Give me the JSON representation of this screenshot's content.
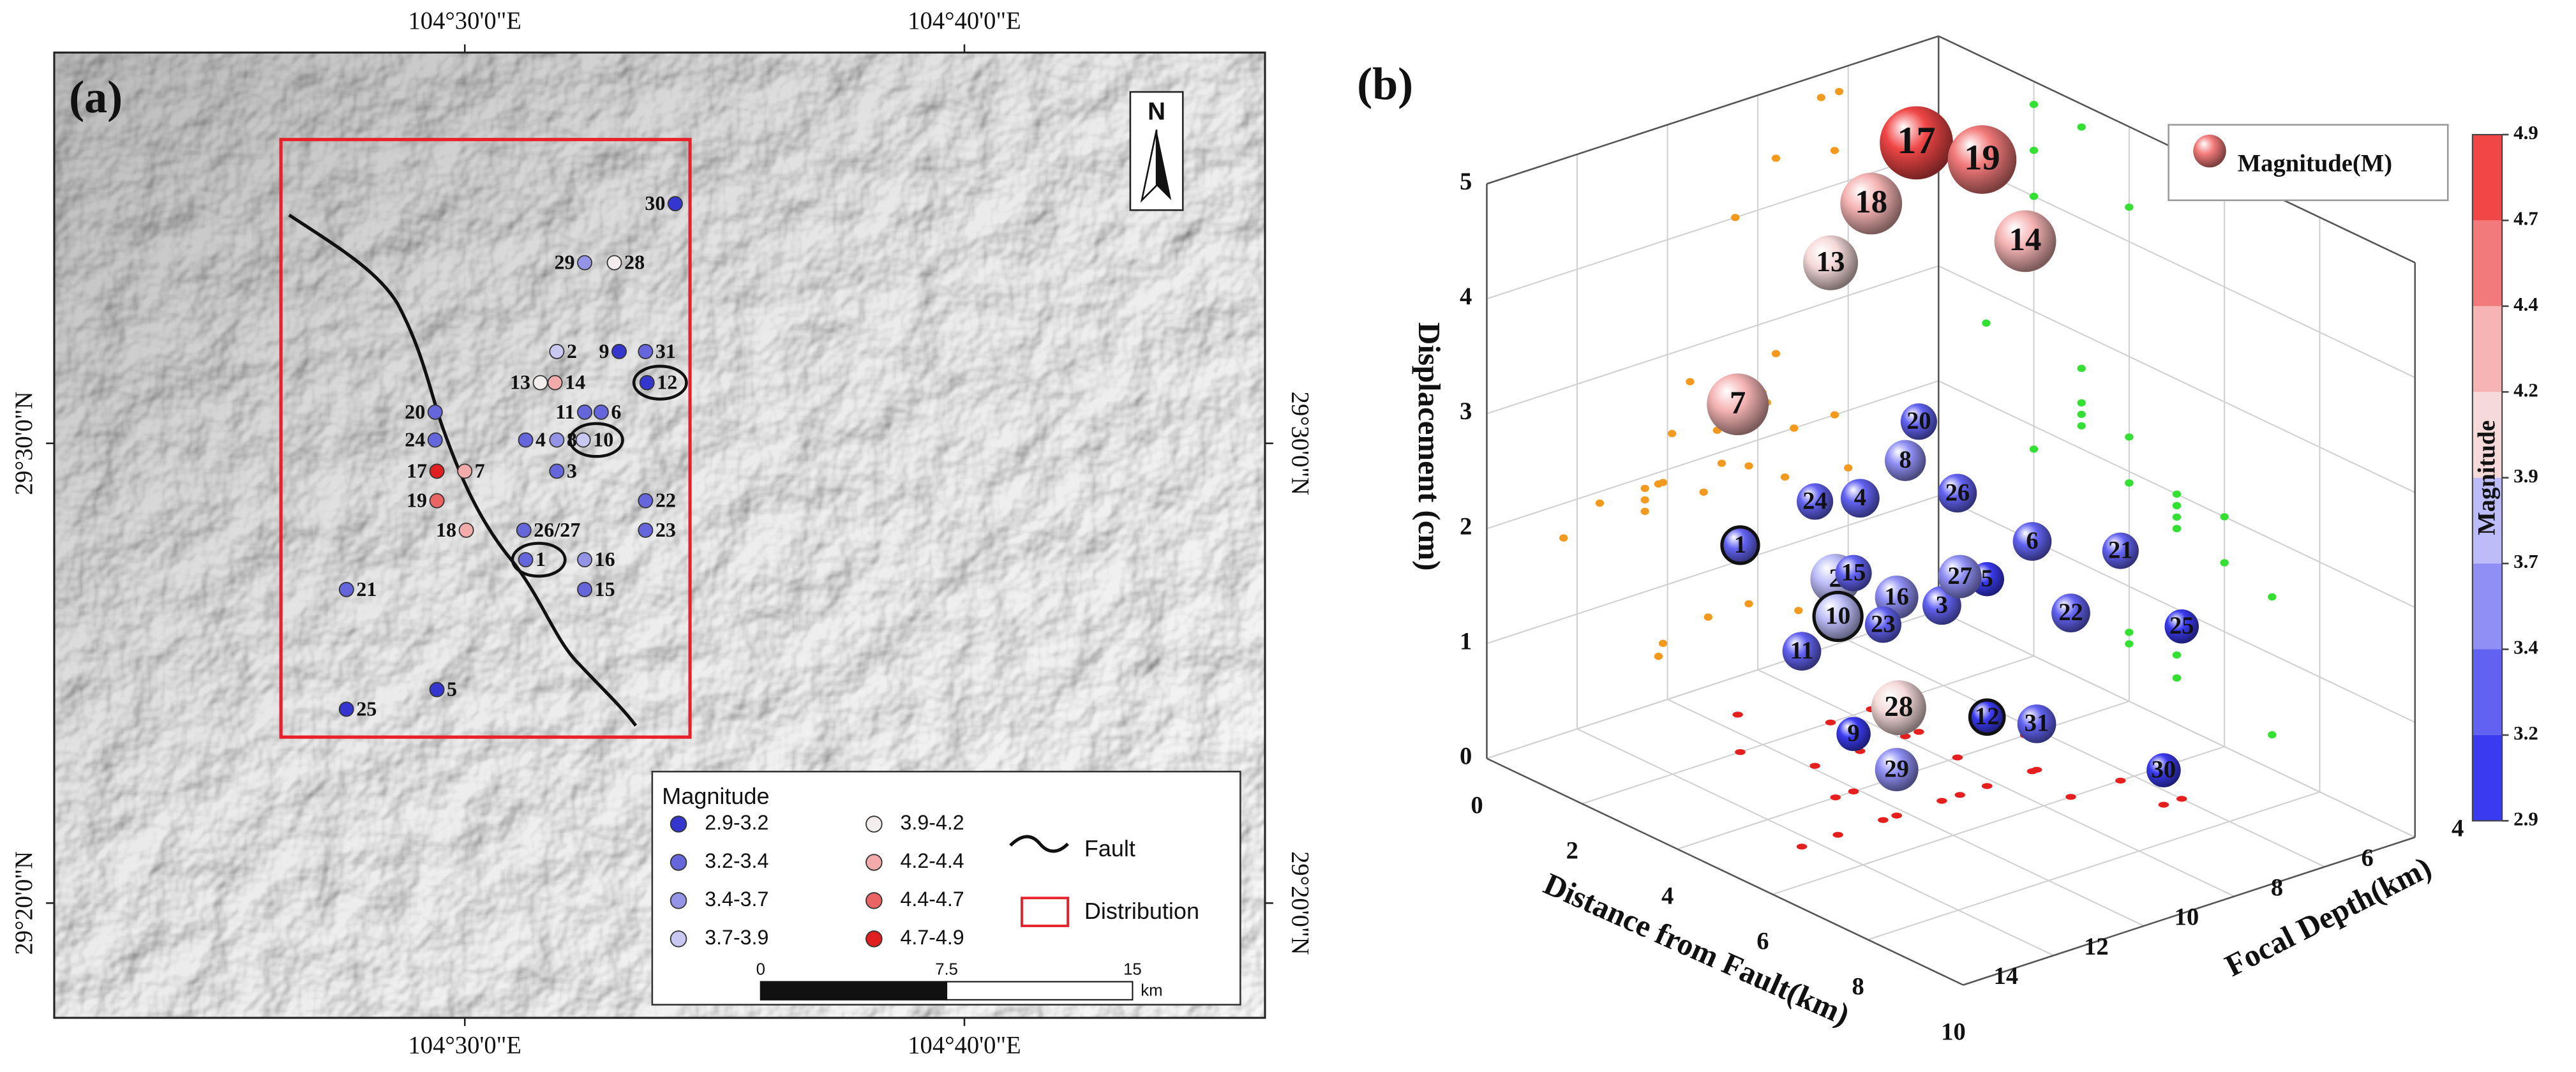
{
  "chart_data": [
    {
      "type": "map",
      "panel": "(a)",
      "xlim": [
        104.363,
        104.767
      ],
      "ylim": [
        29.2917,
        29.6417
      ],
      "xticks": [
        {
          "value": 104.5,
          "label": "104°30'0\"E"
        },
        {
          "value": 104.6667,
          "label": "104°40'0\"E"
        }
      ],
      "yticks": [
        {
          "value": 29.5,
          "label": "29°30'0\"N"
        },
        {
          "value": 29.3333,
          "label": "29°20'0\"N"
        }
      ],
      "north": "N",
      "legend": {
        "title": "Magnitude",
        "classes": [
          {
            "label": "2.9-3.2",
            "range": [
              2.9,
              3.2
            ],
            "color": "#3535d0"
          },
          {
            "label": "3.2-3.4",
            "range": [
              3.2,
              3.4
            ],
            "color": "#6666dc"
          },
          {
            "label": "3.4-3.7",
            "range": [
              3.4,
              3.7
            ],
            "color": "#9494e6"
          },
          {
            "label": "3.7-3.9",
            "range": [
              3.7,
              3.9
            ],
            "color": "#c8c8f2"
          },
          {
            "label": "3.9-4.2",
            "range": [
              3.9,
              4.2
            ],
            "color": "#f4eded"
          },
          {
            "label": "4.2-4.4",
            "range": [
              4.2,
              4.4
            ],
            "color": "#f2aaaa"
          },
          {
            "label": "4.4-4.7",
            "range": [
              4.4,
              4.7
            ],
            "color": "#ea6464"
          },
          {
            "label": "4.7-4.9",
            "range": [
              4.7,
              4.9
            ],
            "color": "#e02020"
          }
        ],
        "fault": "Fault",
        "distribution": "Distribution"
      },
      "scalebar": {
        "ticks": [
          0,
          7.5,
          15
        ],
        "unit": "km"
      },
      "points": [
        {
          "label": "1",
          "lon": 104.5203,
          "lat": 29.4578,
          "magnitude": 3.2,
          "ringed": true
        },
        {
          "label": "2",
          "lon": 104.5307,
          "lat": 29.5333,
          "magnitude": 3.8,
          "ringed": false
        },
        {
          "label": "3",
          "lon": 104.5307,
          "lat": 29.4899,
          "magnitude": 3.3,
          "ringed": false
        },
        {
          "label": "4",
          "lon": 104.5203,
          "lat": 29.5012,
          "magnitude": 3.3,
          "ringed": false
        },
        {
          "label": "5",
          "lon": 104.4907,
          "lat": 29.4107,
          "magnitude": 3.1,
          "ringed": false
        },
        {
          "label": "6",
          "lon": 104.5455,
          "lat": 29.5113,
          "magnitude": 3.3,
          "ringed": false
        },
        {
          "label": "7",
          "lon": 104.5,
          "lat": 29.4899,
          "magnitude": 4.3,
          "ringed": false
        },
        {
          "label": "8",
          "lon": 104.5307,
          "lat": 29.5012,
          "magnitude": 3.4,
          "ringed": false
        },
        {
          "label": "9",
          "lon": 104.5515,
          "lat": 29.5333,
          "magnitude": 3.1,
          "ringed": false
        },
        {
          "label": "10",
          "lon": 104.5395,
          "lat": 29.5012,
          "magnitude": 3.7,
          "ringed": true
        },
        {
          "label": "11",
          "lon": 104.54,
          "lat": 29.5113,
          "magnitude": 3.3,
          "ringed": false
        },
        {
          "label": "12",
          "lon": 104.5608,
          "lat": 29.522,
          "magnitude": 3.1,
          "ringed": true
        },
        {
          "label": "13",
          "lon": 104.5252,
          "lat": 29.522,
          "magnitude": 4.0,
          "ringed": false
        },
        {
          "label": "14",
          "lon": 104.5301,
          "lat": 29.522,
          "magnitude": 4.3,
          "ringed": false
        },
        {
          "label": "15",
          "lon": 104.54,
          "lat": 29.447,
          "magnitude": 3.2,
          "ringed": false
        },
        {
          "label": "16",
          "lon": 104.54,
          "lat": 29.4578,
          "magnitude": 3.5,
          "ringed": false
        },
        {
          "label": "17",
          "lon": 104.4907,
          "lat": 29.4899,
          "magnitude": 4.8,
          "ringed": false
        },
        {
          "label": "18",
          "lon": 104.5005,
          "lat": 29.4685,
          "magnitude": 4.3,
          "ringed": false
        },
        {
          "label": "19",
          "lon": 104.4907,
          "lat": 29.4792,
          "magnitude": 4.6,
          "ringed": false
        },
        {
          "label": "20",
          "lon": 104.4901,
          "lat": 29.5113,
          "magnitude": 3.2,
          "ringed": false
        },
        {
          "label": "21",
          "lon": 104.4605,
          "lat": 29.447,
          "magnitude": 3.2,
          "ringed": false
        },
        {
          "label": "22",
          "lon": 104.5603,
          "lat": 29.4792,
          "magnitude": 3.3,
          "ringed": false
        },
        {
          "label": "23",
          "lon": 104.5603,
          "lat": 29.4685,
          "magnitude": 3.2,
          "ringed": false
        },
        {
          "label": "24",
          "lon": 104.4901,
          "lat": 29.5012,
          "magnitude": 3.2,
          "ringed": false
        },
        {
          "label": "25",
          "lon": 104.4605,
          "lat": 29.4036,
          "magnitude": 3.1,
          "ringed": false
        },
        {
          "label": "26/27",
          "lon": 104.5197,
          "lat": 29.4685,
          "magnitude": 3.3,
          "ringed": false
        },
        {
          "label": "28",
          "lon": 104.5499,
          "lat": 29.5655,
          "magnitude": 4.0,
          "ringed": false
        },
        {
          "label": "29",
          "lon": 104.54,
          "lat": 29.5655,
          "magnitude": 3.5,
          "ringed": false
        },
        {
          "label": "30",
          "lon": 104.5702,
          "lat": 29.5869,
          "magnitude": 3.1,
          "ringed": false
        },
        {
          "label": "31",
          "lon": 104.5603,
          "lat": 29.5333,
          "magnitude": 3.3,
          "ringed": false
        }
      ]
    },
    {
      "type": "scatter3d",
      "panel": "(b)",
      "xlabel": "Distance from Fault(km)",
      "ylabel": "Focal Depth(km)",
      "zlabel": "Displacement (cm)",
      "xlim": [
        0,
        10
      ],
      "xticks": [
        0,
        2,
        4,
        6,
        8,
        10
      ],
      "ylim": [
        14,
        4
      ],
      "yticks": [
        4,
        6,
        8,
        10,
        12,
        14
      ],
      "zlim": [
        0,
        5
      ],
      "zticks": [
        0,
        1,
        2,
        3,
        4,
        5
      ],
      "grid": true,
      "legend": "Magnitude(M)",
      "colorbar": {
        "title": "Magnitude",
        "ticks": [
          2.9,
          3.2,
          3.4,
          3.7,
          3.9,
          4.2,
          4.4,
          4.7,
          4.9
        ],
        "colors": [
          "#3a3af0",
          "#6262f2",
          "#8f8ff5",
          "#bcbcf8",
          "#f6dada",
          "#f6b4b4",
          "#f37a7a",
          "#f04646"
        ]
      },
      "projections": {
        "distance_wall": "#f39a1e",
        "depth_wall": "#33e033",
        "floor": "#e61e1e"
      },
      "events": [
        {
          "label": "1",
          "distance": 2,
          "depth": 10.5,
          "displacement": 1.8,
          "magnitude": 3.2,
          "ringed": true
        },
        {
          "label": "2",
          "distance": 4,
          "depth": 10.5,
          "displacement": 1.9,
          "magnitude": 3.8,
          "ringed": false
        },
        {
          "label": "3",
          "distance": 5,
          "depth": 9.2,
          "displacement": 1.7,
          "magnitude": 3.3,
          "ringed": false
        },
        {
          "label": "4",
          "distance": 3,
          "depth": 8.9,
          "displacement": 2.2,
          "magnitude": 3.3,
          "ringed": false
        },
        {
          "label": "5",
          "distance": 5,
          "depth": 8.2,
          "displacement": 1.8,
          "magnitude": 3.1,
          "ringed": false
        },
        {
          "label": "6",
          "distance": 5,
          "depth": 7.2,
          "displacement": 2.0,
          "magnitude": 3.3,
          "ringed": false
        },
        {
          "label": "7",
          "distance": 1,
          "depth": 9.5,
          "displacement": 2.7,
          "magnitude": 4.3,
          "ringed": false
        },
        {
          "label": "8",
          "distance": 3,
          "depth": 7.9,
          "displacement": 2.4,
          "magnitude": 3.4,
          "ringed": false
        },
        {
          "label": "9",
          "distance": 4,
          "depth": 10.1,
          "displacement": 0.5,
          "magnitude": 3.1,
          "ringed": false
        },
        {
          "label": "10",
          "distance": 5,
          "depth": 11.5,
          "displacement": 1.9,
          "magnitude": 3.7,
          "ringed": true
        },
        {
          "label": "11",
          "distance": 5,
          "depth": 12.3,
          "displacement": 1.7,
          "magnitude": 3.3,
          "ringed": false
        },
        {
          "label": "12",
          "distance": 5,
          "depth": 8.2,
          "displacement": 0.6,
          "magnitude": 3.1,
          "ringed": true
        },
        {
          "label": "13",
          "distance": 2,
          "depth": 8.5,
          "displacement": 4.0,
          "magnitude": 4.0,
          "ringed": false
        },
        {
          "label": "14",
          "distance": 4,
          "depth": 6.3,
          "displacement": 4.3,
          "magnitude": 4.3,
          "ringed": false
        },
        {
          "label": "15",
          "distance": 4,
          "depth": 10.1,
          "displacement": 1.9,
          "magnitude": 3.2,
          "ringed": false
        },
        {
          "label": "16",
          "distance": 5,
          "depth": 10.2,
          "displacement": 1.9,
          "magnitude": 3.5,
          "ringed": false
        },
        {
          "label": "17",
          "distance": 2,
          "depth": 6.6,
          "displacement": 4.8,
          "magnitude": 4.8,
          "ringed": false
        },
        {
          "label": "18",
          "distance": 2,
          "depth": 7.6,
          "displacement": 4.4,
          "magnitude": 4.3,
          "ringed": false
        },
        {
          "label": "19",
          "distance": 3,
          "depth": 6.2,
          "displacement": 4.8,
          "magnitude": 4.6,
          "ringed": false
        },
        {
          "label": "20",
          "distance": 3,
          "depth": 7.6,
          "displacement": 2.7,
          "magnitude": 3.2,
          "ringed": false
        },
        {
          "label": "21",
          "distance": 6,
          "depth": 6.3,
          "displacement": 2.0,
          "magnitude": 3.2,
          "ringed": false
        },
        {
          "label": "22",
          "distance": 6,
          "depth": 7.4,
          "displacement": 1.6,
          "magnitude": 3.3,
          "ringed": false
        },
        {
          "label": "23",
          "distance": 5,
          "depth": 10.5,
          "displacement": 1.7,
          "magnitude": 3.2,
          "ringed": false
        },
        {
          "label": "24",
          "distance": 3,
          "depth": 9.9,
          "displacement": 2.3,
          "magnitude": 3.2,
          "ringed": false
        },
        {
          "label": "25",
          "distance": 7,
          "depth": 6.0,
          "displacement": 1.5,
          "magnitude": 3.1,
          "ringed": false
        },
        {
          "label": "26",
          "distance": 4,
          "depth": 7.8,
          "displacement": 2.3,
          "magnitude": 3.3,
          "ringed": false
        },
        {
          "label": "27",
          "distance": 5,
          "depth": 8.8,
          "displacement": 1.9,
          "magnitude": 3.5,
          "ringed": false
        },
        {
          "label": "28",
          "distance": 4,
          "depth": 9.1,
          "displacement": 0.6,
          "magnitude": 4.0,
          "ringed": false
        },
        {
          "label": "29",
          "distance": 5,
          "depth": 10.2,
          "displacement": 0.4,
          "magnitude": 3.5,
          "ringed": false
        },
        {
          "label": "30",
          "distance": 7,
          "depth": 6.4,
          "displacement": 0.3,
          "magnitude": 3.1,
          "ringed": false
        },
        {
          "label": "31",
          "distance": 5,
          "depth": 7.1,
          "displacement": 0.4,
          "magnitude": 3.3,
          "ringed": false
        }
      ]
    }
  ]
}
